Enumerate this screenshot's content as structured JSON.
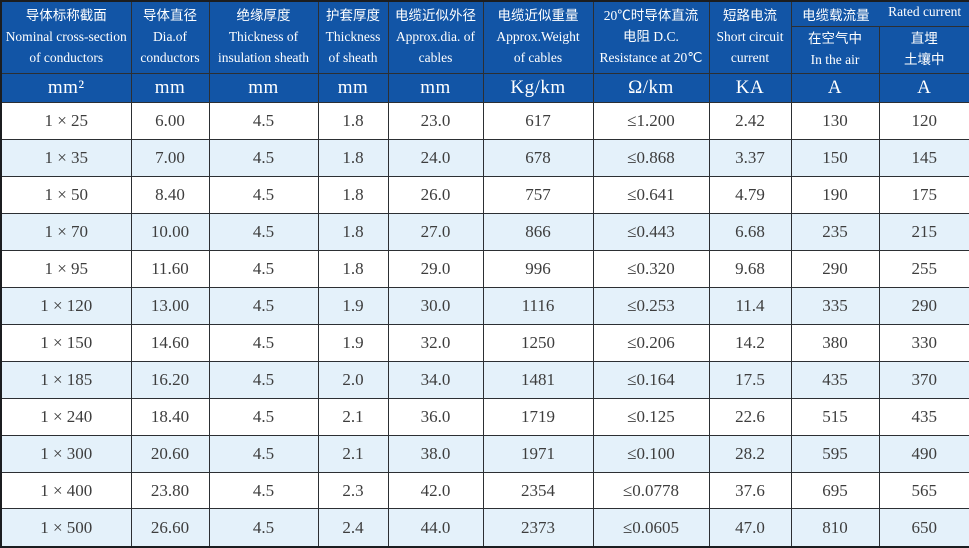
{
  "table": {
    "title_semantic": "single-core cable technical specifications",
    "accent_color": "#1255a6",
    "alt_row_color": "#e4f1fa",
    "columns": [
      {
        "text": "导体标称截面\nNominal cross-section\nof conductors"
      },
      {
        "text": "导体直径\nDia.of\nconductors"
      },
      {
        "text": "绝缘厚度\nThickness of\ninsulation sheath"
      },
      {
        "text": "护套厚度\nThickness\nof sheath"
      },
      {
        "text": "电缆近似外径\nApprox.dia. of\ncables"
      },
      {
        "text": "电缆近似重量\nApprox.Weight\nof cables"
      },
      {
        "text": "20℃时导体直流\n电阻 D.C.\nResistance at 20℃"
      },
      {
        "text": "短路电流\nShort circuit\ncurrent"
      }
    ],
    "rated_group": {
      "zh": "电缆载流量",
      "en": "Rated current"
    },
    "sub_columns": [
      {
        "text": "在空气中\nIn the air"
      },
      {
        "text": "直埋\n土壤中"
      }
    ],
    "units": [
      "mm²",
      "mm",
      "mm",
      "mm",
      "mm",
      "Kg/km",
      "Ω/km",
      "KA",
      "A",
      "A"
    ],
    "rows": [
      [
        "1 × 25",
        "6.00",
        "4.5",
        "1.8",
        "23.0",
        "617",
        "≤1.200",
        "2.42",
        "130",
        "120"
      ],
      [
        "1 × 35",
        "7.00",
        "4.5",
        "1.8",
        "24.0",
        "678",
        "≤0.868",
        "3.37",
        "150",
        "145"
      ],
      [
        "1 × 50",
        "8.40",
        "4.5",
        "1.8",
        "26.0",
        "757",
        "≤0.641",
        "4.79",
        "190",
        "175"
      ],
      [
        "1 × 70",
        "10.00",
        "4.5",
        "1.8",
        "27.0",
        "866",
        "≤0.443",
        "6.68",
        "235",
        "215"
      ],
      [
        "1 × 95",
        "11.60",
        "4.5",
        "1.8",
        "29.0",
        "996",
        "≤0.320",
        "9.68",
        "290",
        "255"
      ],
      [
        "1 × 120",
        "13.00",
        "4.5",
        "1.9",
        "30.0",
        "1116",
        "≤0.253",
        "11.4",
        "335",
        "290"
      ],
      [
        "1 × 150",
        "14.60",
        "4.5",
        "1.9",
        "32.0",
        "1250",
        "≤0.206",
        "14.2",
        "380",
        "330"
      ],
      [
        "1 × 185",
        "16.20",
        "4.5",
        "2.0",
        "34.0",
        "1481",
        "≤0.164",
        "17.5",
        "435",
        "370"
      ],
      [
        "1 × 240",
        "18.40",
        "4.5",
        "2.1",
        "36.0",
        "1719",
        "≤0.125",
        "22.6",
        "515",
        "435"
      ],
      [
        "1 × 300",
        "20.60",
        "4.5",
        "2.1",
        "38.0",
        "1971",
        "≤0.100",
        "28.2",
        "595",
        "490"
      ],
      [
        "1 × 400",
        "23.80",
        "4.5",
        "2.3",
        "42.0",
        "2354",
        "≤0.0778",
        "37.6",
        "695",
        "565"
      ],
      [
        "1 × 500",
        "26.60",
        "4.5",
        "2.4",
        "44.0",
        "2373",
        "≤0.0605",
        "47.0",
        "810",
        "650"
      ]
    ]
  }
}
